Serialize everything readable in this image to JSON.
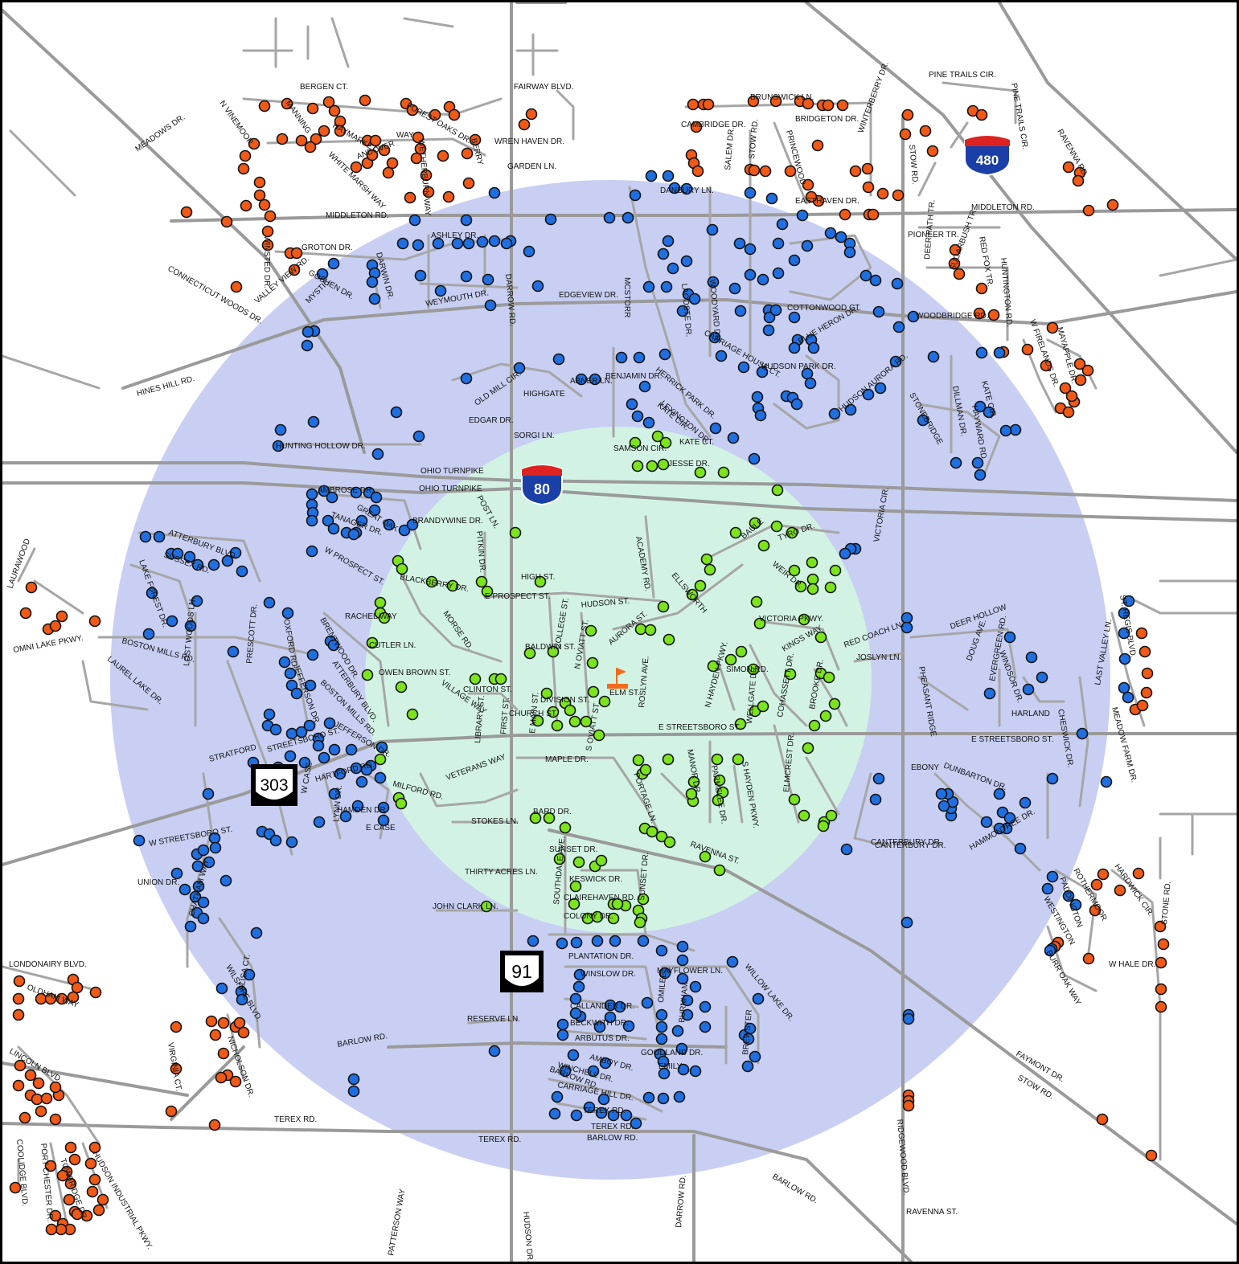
{
  "colors": {
    "outer_zone": "#c8cff3",
    "inner_zone": "#d2f3e3",
    "inner_dot": "#7ce41c",
    "mid_dot": "#1f6fe0",
    "outer_dot": "#f05a16",
    "flag": "#f26a1b"
  },
  "shields": {
    "i80": "80",
    "i480": "480",
    "sr303": "303",
    "sr91": "91"
  },
  "labels": [
    "BERGEN CT.",
    "FAIRWAY BLVD.",
    "MEADOWS DR.",
    "N VINEMOOR",
    "MANNING",
    "HAYMARKET",
    "WAY",
    "FOREST OAKS DR.",
    "WREN HAVEN DR.",
    "WHITE MARSH WAY",
    "ANDOVER",
    "WETHERBURN WAY",
    "BERRY",
    "GARDEN LN.",
    "MIDDLETON RD.",
    "WINSTED DR.",
    "GROTON DR.",
    "GOSHEN DR.",
    "DARWIN DR.",
    "ASHLEY DR.",
    "CONNECTICUT WOODS DR.",
    "VALLEY VIEW RD.",
    "MYSTIC",
    "WEYMOUTH DR.",
    "DARROW RD.",
    "EDGEVIEW DR.",
    "MCSTORR",
    "HINES HILL RD.",
    "HUNTING HOLLOW DR.",
    "EDGAR DR.",
    "SORGI LN.",
    "OHIO TURNPIKE",
    "OHIO TURNPIKE",
    "OLD MILL CIR.",
    "HIGHGATE",
    "ABNER LN.",
    "BENJAMIN DR.",
    "CAMBRIDGE DR.",
    "DANBURY LN.",
    "BRUNSWICK LN.",
    "BRIDGETON DR.",
    "PRINCEWOOD",
    "EASTHAVEN DR.",
    "WINTERBERRY DR.",
    "PINE TRAILS CIR.",
    "PINE TRAILS CIR.",
    "MIDDLETON RD.",
    "PIONEER TR.",
    "DEER PATH TR.",
    "SUGARBUSH TR.",
    "RED FOX TR.",
    "HUNTINGTON RD.",
    "WOODBRIDGE RD.",
    "RAVENNA RD.",
    "STOW RD.",
    "WOODYARD DR.",
    "LACOSTE DR.",
    "CARRIAGE HOUSE CT.",
    "HERRICK PARK DR.",
    "KATE CIR.",
    "KATE CT.",
    "SAMSON CIR.",
    "JESSE DR.",
    "HUDSON PARK DR.",
    "HUDSON AURORA RD.",
    "COTTONWOOD CT.",
    "BLUE HERON DR.",
    "STONEBRIDGE",
    "DILLMAN DR.",
    "HAYWARD RD.",
    "W FIRELANDS DR.",
    "MAYAPPLE DR.",
    "AMBROSE DR.",
    "GREAT OAK",
    "BRANDYWINE DR.",
    "TANAGER DR.",
    "ATTERBURY BLVD.",
    "SUSSEX RD.",
    "W PROSPECT ST.",
    "POST LN.",
    "PITKIN DR.",
    "HIGH ST.",
    "BLACKBERRY DR.",
    "E PROSPECT ST.",
    "ACADEMY RD.",
    "HUDSON ST.",
    "ELLSWORTH",
    "BAULE",
    "TYRO DR.",
    "WEIR DR.",
    "VICTORIA PKWY.",
    "VICTORIA CIR.",
    "RED COACH LN.",
    "JOSLYN LN.",
    "DEER HOLLOW",
    "DOUG AVE.",
    "WINDSOR DR.",
    "ST. REGIS BLVD.",
    "RACHEL WAY",
    "MORSE RD.",
    "CUTLER LN.",
    "BALDWIN ST.",
    "COLLEGE ST.",
    "N OVIATT ST.",
    "AURORA ST.",
    "KINGS WAY",
    "OWEN BROWN ST.",
    "CLINTON ST.",
    "VILLAGE WAY",
    "DIVISION ST.",
    "CHURCH ST.",
    "ELM ST.",
    "N HAYDEN PKWY.",
    "SIMON RD.",
    "COHASSETT DR.",
    "BROOKE DR.",
    "PHEASANT RIDGE",
    "EVERGREEN RD.",
    "HARLAND",
    "LAKE FOREST DR.",
    "BOSTON MILLS RD.",
    "LAUREL LAKE DR.",
    "LOST WOODS LN.",
    "OXFORD RD.",
    "BRENTWOOD DR.",
    "ATTERBURY BLVD.",
    "BOSTON MILLS RD.",
    "JEFFERSON DR.",
    "JEFFERSON DR.",
    "PRESCOTT DR.",
    "LIBRARY ST.",
    "FIRST ST.",
    "E MAIN ST.",
    "S OVIATT ST.",
    "ROSLYN AVE.",
    "E STREETSBORO ST.",
    "WELLGATE DR.",
    "ELMCREST DR.",
    "E STREETSBORO ST.",
    "CANTERBURY DR.",
    "CHESWICK DR.",
    "MEADOW FARM DR.",
    "LAST VALLEY LN.",
    "STRATFORD",
    "STREETSBORO ST.",
    "HARTFORD RD.",
    "MILFORD RD.",
    "VETERANS WAY",
    "MAPLE DR.",
    "PORTAGE LN.",
    "MANOR DR.",
    "PARMELEE DR.",
    "S HAYDEN PKWY.",
    "EBONY",
    "DUNBARTON DR.",
    "W STREETSBORO ST.",
    "HAMDEN DR.",
    "E CASE",
    "LYNN DR.",
    "W CASE",
    "STOKES LN.",
    "BARD DR.",
    "SUNSET DR.",
    "RAVENNA ST.",
    "CANTERBURY DR.",
    "HAMMONTREE DR.",
    "THIRTY ACRES LN.",
    "KESWICK DR.",
    "CLAIREHAVEN RD.",
    "COLONY DR.",
    "UNION DR.",
    "JOHN CLARK LN.",
    "SOUTHDALE AVE.",
    "SUNSET DR.",
    "ROTHERMOOR",
    "PADDINGTON",
    "WESTINGTON",
    "BURR OAK WAY",
    "HARDWICK CIR.",
    "W HALE DR.",
    "STONE RD.",
    "LONDONAIRY BLVD.",
    "OLDHAM WAY",
    "PLANTATION DR.",
    "WINSLOW DR.",
    "MAYFLOWER LN.",
    "WILLOW LAKE DR.",
    "CALLANDER DR.",
    "BECKWITH DR.",
    "ARBUTUS DR.",
    "AMBOY DR.",
    "GOODLAND DR.",
    "EMILY",
    "WINCHELL DR.",
    "CARRIAGE HILL DR.",
    "TEREX RD.",
    "TEREX RD.",
    "TEREX RD.",
    "TEREX RD.",
    "BARLOW RD.",
    "BARLOW RD.",
    "BARLOW RD.",
    "BARLOW RD.",
    "FAYMONT DR.",
    "RESERVE LN.",
    "VIRGINIA CT.",
    "NICHOLSON DR.",
    "ALISA CT.",
    "WILSHIRE BLVD.",
    "LINCOLN BLVD.",
    "COOLIDGE BLVD.",
    "PORT CHESTER DR.",
    "TOWBRIDGE DR.",
    "HUDSON INDUSTRIAL PKWY.",
    "DARROW RD.",
    "HUDSON DR.",
    "PATTERSON WAY",
    "RAVENNA ST.",
    "STOW RD.",
    "RIDGEWOOD BLVD.",
    "OMNI LAKE PKWY.",
    "LAURAWOOD",
    "CHATHAM WAY",
    "BREWSTER",
    "OMILEE",
    "BURNHAM",
    "KATE CIR.",
    "LEXINGTON DR.",
    "SALEM DR.",
    "STOW RD."
  ]
}
